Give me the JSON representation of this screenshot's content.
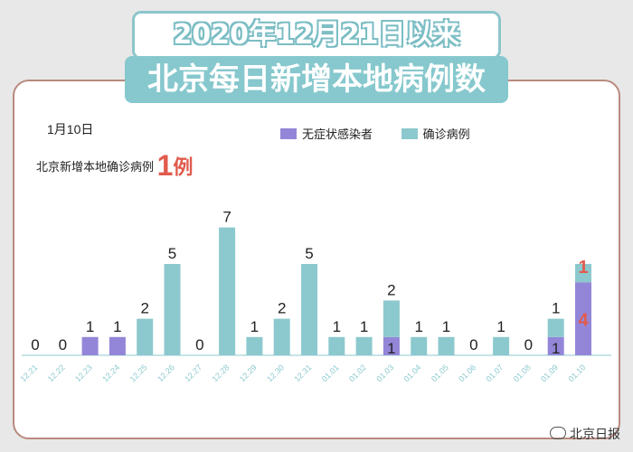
{
  "header": {
    "title_line1": "2020年12月21日以来",
    "title_line2": "北京每日新增本地病例数"
  },
  "notice": {
    "date": "1月10日",
    "label": "北京新增本地确诊病例",
    "count": "1",
    "unit": "例"
  },
  "watermark": "北京日报",
  "colors": {
    "asymptomatic": "#9386d8",
    "confirmed": "#8cc9ce",
    "highlight": "#e15b4d",
    "tick": "#8cc9ce"
  },
  "chart_data": {
    "type": "bar",
    "stacked": true,
    "categories": [
      "12.21",
      "12.22",
      "12.23",
      "12.24",
      "12.25",
      "12.26",
      "12.27",
      "12.28",
      "12.29",
      "12.30",
      "12.31",
      "01.01",
      "01.02",
      "01.03",
      "01.04",
      "01.05",
      "01.06",
      "01.07",
      "01.08",
      "01.09",
      "01.10"
    ],
    "series": [
      {
        "name": "无症状感染者",
        "values": [
          0,
          0,
          1,
          1,
          0,
          0,
          0,
          0,
          0,
          0,
          0,
          0,
          0,
          1,
          0,
          0,
          0,
          0,
          0,
          1,
          4
        ]
      },
      {
        "name": "确诊病例",
        "values": [
          0,
          0,
          0,
          0,
          2,
          5,
          0,
          7,
          1,
          2,
          5,
          1,
          1,
          2,
          1,
          1,
          0,
          1,
          0,
          1,
          1
        ]
      }
    ],
    "labels": [
      "0",
      "0",
      "1",
      "1",
      "2",
      "5",
      "0",
      "7",
      "1",
      "2",
      "5",
      "1",
      "1",
      "2",
      "1",
      "1",
      "0",
      "1",
      "0",
      "1",
      "1"
    ],
    "stack_labels": [
      {
        "index": 13,
        "bottom": "1",
        "top": "2"
      },
      {
        "index": 19,
        "bottom": "1",
        "top": "1"
      },
      {
        "index": 20,
        "bottom": "4",
        "top": "1"
      }
    ],
    "ylim": [
      0,
      8
    ],
    "legend_position": "top-right"
  }
}
